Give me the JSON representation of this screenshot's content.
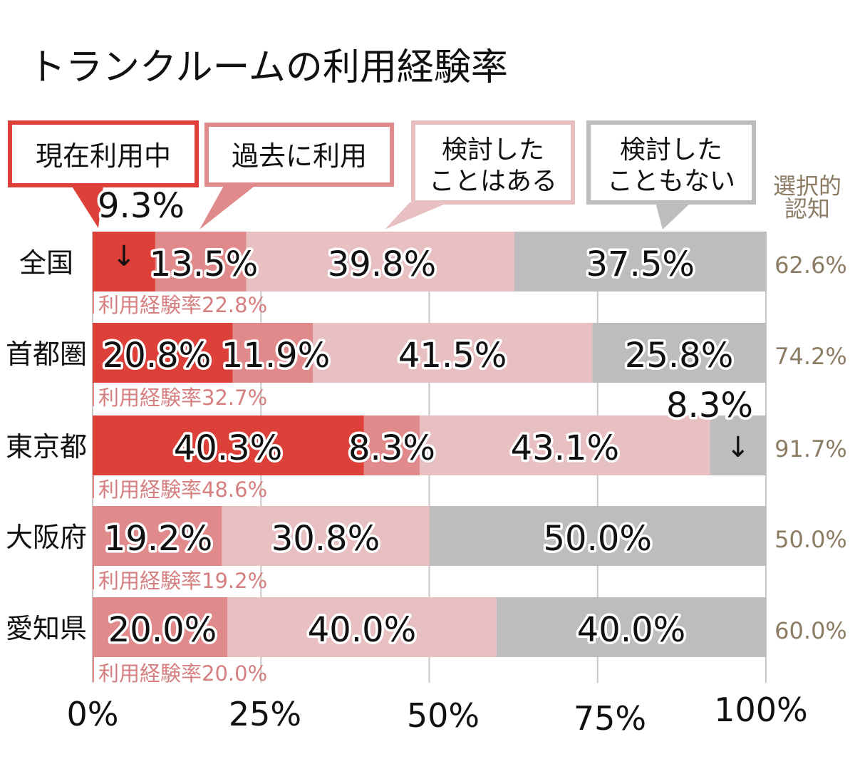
{
  "title": "トランクルームの利用経験率",
  "chart_data": {
    "type": "bar",
    "orientation": "horizontal",
    "stacked": true,
    "title": "トランクルームの利用経験率",
    "xlim": [
      0,
      100
    ],
    "x_ticks": [
      "0%",
      "25%",
      "50%",
      "75%",
      "100%"
    ],
    "categories": [
      "全国",
      "首都圏",
      "東京都",
      "大阪府",
      "愛知県"
    ],
    "series": [
      {
        "name": "現在利用中",
        "legend_lines": [
          "現在利用中"
        ],
        "color": "#dd4039",
        "values": [
          9.3,
          20.8,
          40.3,
          0,
          0
        ]
      },
      {
        "name": "過去に利用",
        "legend_lines": [
          "過去に利用"
        ],
        "color": "#e08a8c",
        "values": [
          13.5,
          11.9,
          8.3,
          19.2,
          20.0
        ]
      },
      {
        "name": "検討したことはある",
        "legend_lines": [
          "検討した",
          "ことはある"
        ],
        "color": "#e9c0c2",
        "values": [
          39.8,
          41.5,
          43.1,
          30.8,
          40.0
        ]
      },
      {
        "name": "検討したこともない",
        "legend_lines": [
          "検討した",
          "こともない"
        ],
        "color": "#bfbcbe",
        "values": [
          37.5,
          25.8,
          8.3,
          50.0,
          40.0
        ]
      }
    ],
    "value_labels": [
      [
        "9.3%",
        "13.5%",
        "39.8%",
        "37.5%"
      ],
      [
        "20.8%",
        "11.9%",
        "41.5%",
        "25.8%"
      ],
      [
        "40.3%",
        "8.3%",
        "43.1%",
        "8.3%"
      ],
      [
        "",
        "19.2%",
        "30.8%",
        "50.0%"
      ],
      [
        "",
        "20.0%",
        "40.0%",
        "40.0%"
      ]
    ],
    "usage_experience_labels": [
      "利用経験率22.8%",
      "利用経験率32.7%",
      "利用経験率48.6%",
      "利用経験率19.2%",
      "利用経験率20.0%"
    ],
    "selective_recognition_header": [
      "選択的",
      "認知"
    ],
    "selective_recognition_labels": [
      "62.6%",
      "74.2%",
      "91.7%",
      "50.0%",
      "60.0%"
    ],
    "arrow_glyph": "↓"
  }
}
